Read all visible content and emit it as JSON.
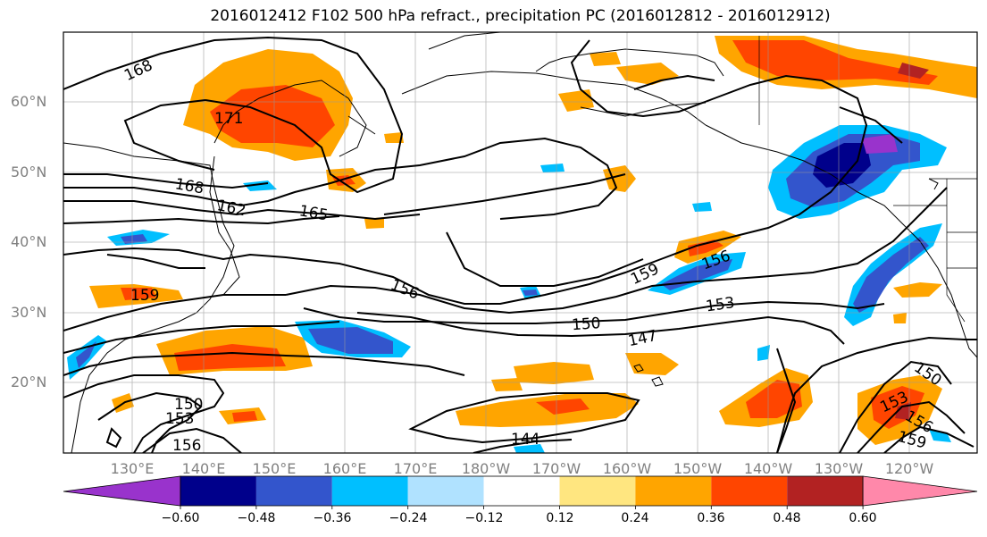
{
  "title": "2016012412 F102 500 hPa refract., precipitation PC (2016012812 - 2016012912)",
  "lat_labels": [
    "60°N",
    "50°N",
    "40°N",
    "30°N",
    "20°N"
  ],
  "lon_labels": [
    "130°E",
    "140°E",
    "150°E",
    "160°E",
    "170°E",
    "180°W",
    "170°W",
    "160°W",
    "150°W",
    "140°W",
    "130°W",
    "120°W"
  ],
  "contour_labels": [
    "168",
    "171",
    "168",
    "162",
    "165",
    "156",
    "159",
    "156",
    "153",
    "150",
    "147",
    "150",
    "153",
    "156",
    "144",
    "150",
    "153",
    "156",
    "159",
    "159"
  ],
  "colorbar": {
    "tick_labels": [
      "−0.60",
      "−0.48",
      "−0.36",
      "−0.24",
      "−0.12",
      "0.12",
      "0.24",
      "0.36",
      "0.48",
      "0.60"
    ],
    "colors": [
      "#9933cc",
      "#00008b",
      "#3355cc",
      "#00bfff",
      "#b0e2ff",
      "#ffffff",
      "#ffe680",
      "#ffa500",
      "#ff4500",
      "#b22222",
      "#ff88aa"
    ]
  }
}
